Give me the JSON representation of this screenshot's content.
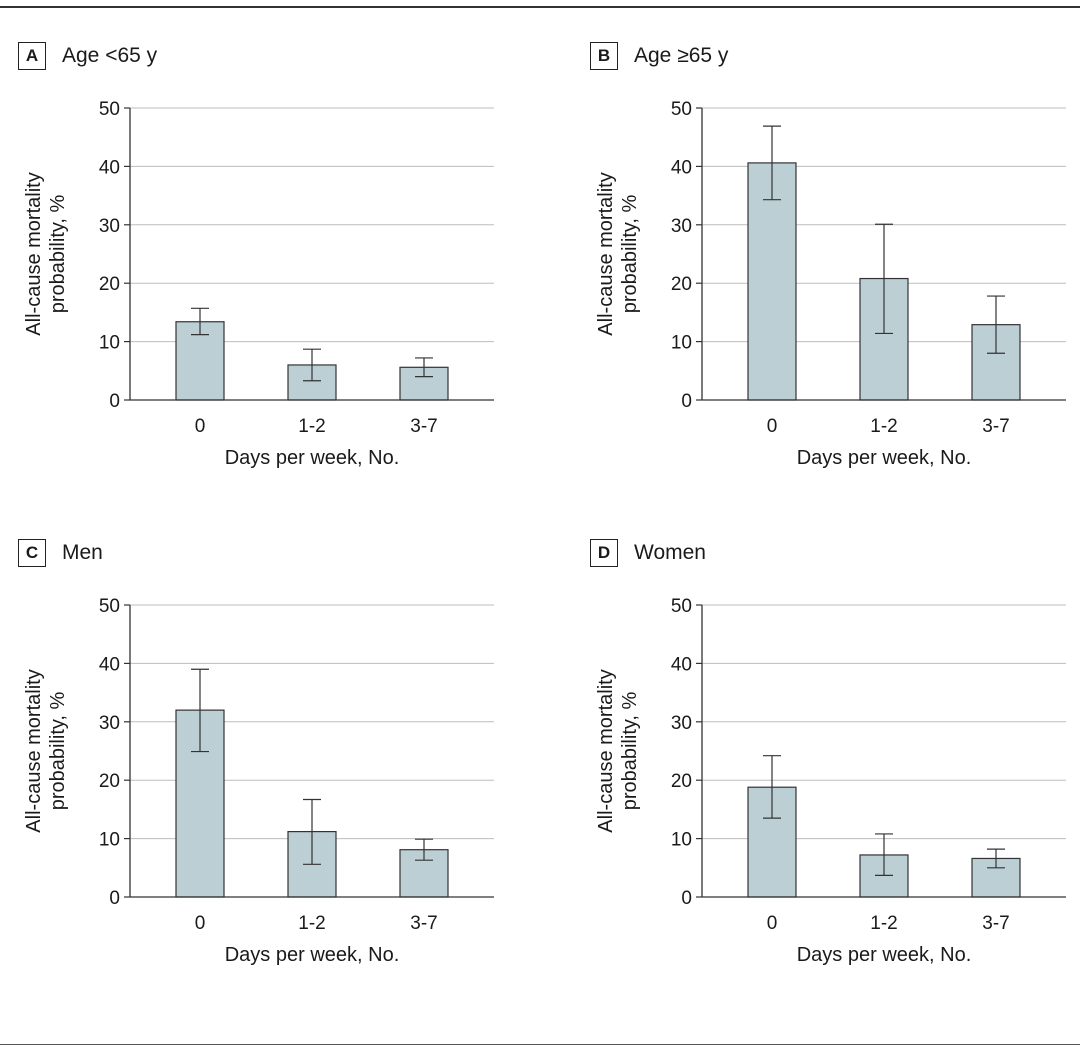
{
  "chart_data": [
    {
      "type": "bar",
      "panel_letter": "A",
      "title": "Age <65 y",
      "categories": [
        "0",
        "1-2",
        "3-7"
      ],
      "values": [
        13.4,
        6.0,
        5.6
      ],
      "error_low": [
        11.2,
        3.3,
        4.0
      ],
      "error_high": [
        15.7,
        8.7,
        7.2
      ],
      "xlabel": "Days per week, No.",
      "ylabel": [
        "All-cause mortality",
        "probability, %"
      ],
      "ylim": [
        0,
        50
      ],
      "yticks": [
        0,
        10,
        20,
        30,
        40,
        50
      ],
      "grid": true,
      "bar_color": "#bccfd4"
    },
    {
      "type": "bar",
      "panel_letter": "B",
      "title": "Age ≥65 y",
      "categories": [
        "0",
        "1-2",
        "3-7"
      ],
      "values": [
        40.6,
        20.8,
        12.9
      ],
      "error_low": [
        34.3,
        11.4,
        8.0
      ],
      "error_high": [
        46.9,
        30.1,
        17.8
      ],
      "xlabel": "Days per week, No.",
      "ylabel": [
        "All-cause mortality",
        "probability, %"
      ],
      "ylim": [
        0,
        50
      ],
      "yticks": [
        0,
        10,
        20,
        30,
        40,
        50
      ],
      "grid": true,
      "bar_color": "#bccfd4"
    },
    {
      "type": "bar",
      "panel_letter": "C",
      "title": "Men",
      "categories": [
        "0",
        "1-2",
        "3-7"
      ],
      "values": [
        32.0,
        11.2,
        8.1
      ],
      "error_low": [
        24.9,
        5.6,
        6.3
      ],
      "error_high": [
        39.0,
        16.7,
        9.9
      ],
      "xlabel": "Days per week, No.",
      "ylabel": [
        "All-cause mortality",
        "probability, %"
      ],
      "ylim": [
        0,
        50
      ],
      "yticks": [
        0,
        10,
        20,
        30,
        40,
        50
      ],
      "grid": true,
      "bar_color": "#bccfd4"
    },
    {
      "type": "bar",
      "panel_letter": "D",
      "title": "Women",
      "categories": [
        "0",
        "1-2",
        "3-7"
      ],
      "values": [
        18.8,
        7.2,
        6.6
      ],
      "error_low": [
        13.5,
        3.7,
        5.0
      ],
      "error_high": [
        24.2,
        10.8,
        8.2
      ],
      "xlabel": "Days per week, No.",
      "ylabel": [
        "All-cause mortality",
        "probability, %"
      ],
      "ylim": [
        0,
        50
      ],
      "yticks": [
        0,
        10,
        20,
        30,
        40,
        50
      ],
      "grid": true,
      "bar_color": "#bccfd4"
    }
  ]
}
